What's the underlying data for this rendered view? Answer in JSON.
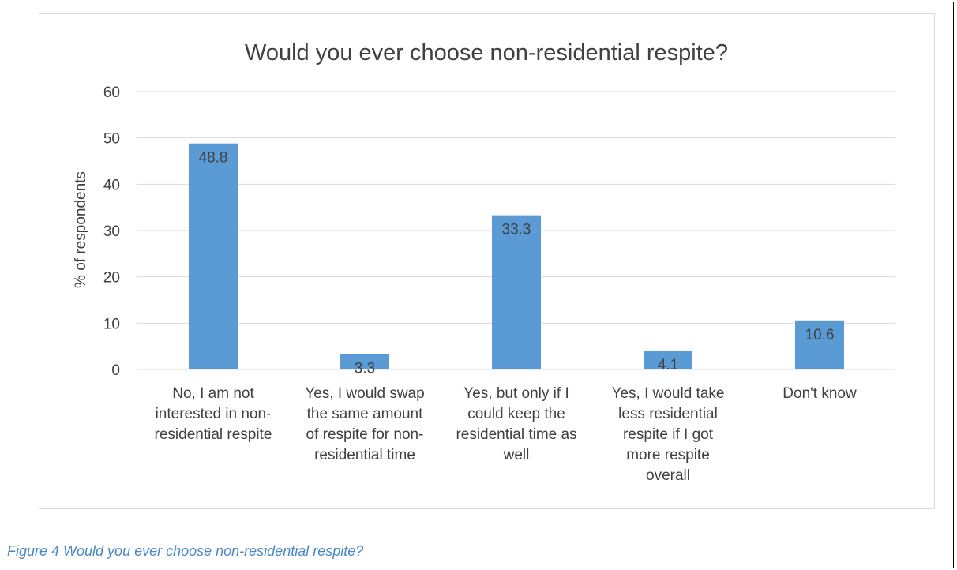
{
  "caption": "Figure 4  Would you ever choose non-residential respite?",
  "colors": {
    "bar": "#5b9bd5",
    "grid": "#d9d9d9",
    "text": "#404040",
    "caption": "#4a86c5"
  },
  "chart_data": {
    "type": "bar",
    "title": "Would you ever choose non-residential respite?",
    "xlabel": "",
    "ylabel": "% of respondents",
    "ylim": [
      0,
      60
    ],
    "yticks": [
      0,
      10,
      20,
      30,
      40,
      50,
      60
    ],
    "grid": true,
    "legend": "none",
    "categories": [
      [
        "No, I am not",
        "interested in non-",
        "residential respite"
      ],
      [
        "Yes, I would swap",
        "the same amount",
        "of respite for non-",
        "residential time"
      ],
      [
        "Yes, but only if I",
        "could keep the",
        "residential time as",
        "well"
      ],
      [
        "Yes, I would take",
        "less residential",
        "respite if I got",
        "more respite",
        "overall"
      ],
      [
        "Don't know"
      ]
    ],
    "values": [
      48.8,
      3.3,
      33.3,
      4.1,
      10.6
    ],
    "data_labels": [
      "48.8",
      "3.3",
      "33.3",
      "4.1",
      "10.6"
    ]
  }
}
